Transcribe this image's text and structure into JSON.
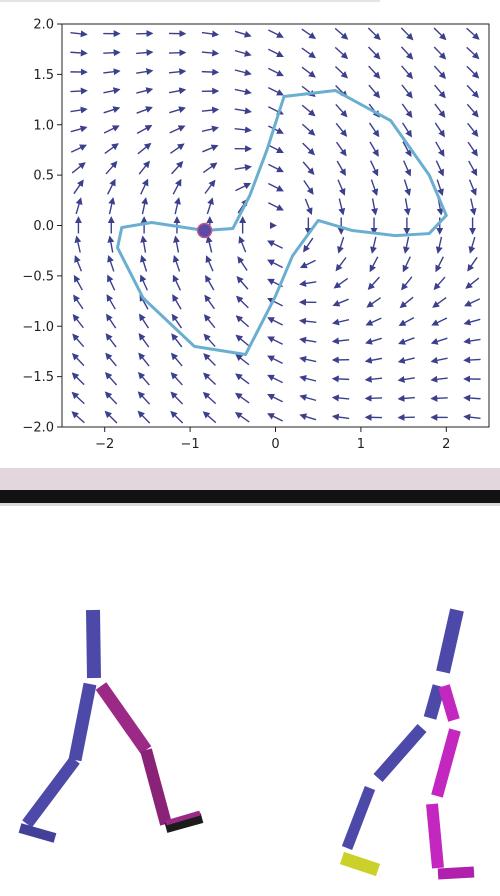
{
  "chart_data": {
    "type": "quiver",
    "xlim": [
      -2.5,
      2.5
    ],
    "ylim": [
      -2.0,
      2.0
    ],
    "xticks": [
      "-2",
      "-1",
      "0",
      "1",
      "2"
    ],
    "yticks": [
      "2.0",
      "1.5",
      "1.0",
      "0.5",
      "0.0",
      "-0.5",
      "-1.0",
      "-1.5",
      "-2.0"
    ],
    "vector_field": {
      "x_range": [
        -2.5,
        2.5
      ],
      "y_range": [
        -2.0,
        2.0
      ],
      "nx": 13,
      "ny": 21
    },
    "trajectory": [
      [
        -0.83,
        -0.05
      ],
      [
        -0.5,
        -0.03
      ],
      [
        -0.3,
        0.3
      ],
      [
        -0.1,
        0.75
      ],
      [
        0.1,
        1.28
      ],
      [
        0.7,
        1.34
      ],
      [
        1.35,
        1.04
      ],
      [
        1.8,
        0.5
      ],
      [
        2.0,
        0.1
      ],
      [
        1.8,
        -0.08
      ],
      [
        1.4,
        -0.1
      ],
      [
        0.9,
        -0.05
      ],
      [
        0.5,
        0.05
      ],
      [
        0.2,
        -0.3
      ],
      [
        0.0,
        -0.7
      ],
      [
        -0.35,
        -1.28
      ],
      [
        -0.95,
        -1.2
      ],
      [
        -1.55,
        -0.72
      ],
      [
        -1.85,
        -0.22
      ],
      [
        -1.8,
        -0.02
      ],
      [
        -1.45,
        0.03
      ],
      [
        -0.83,
        -0.05
      ]
    ],
    "marker": {
      "x": -0.83,
      "y": -0.05
    },
    "colors": {
      "arrow": "#3c3f8c",
      "trajectory": "#6aaed0",
      "marker": "#5b4aa8",
      "axis": "#222222"
    }
  },
  "simulation": {
    "colors": {
      "blue_limb": "#4c49a8",
      "magenta_limb": "#9a2a86",
      "bright_magenta": "#c426c0",
      "yellow_foot": "#c9d12a",
      "dark_foot": "#1c1c1c"
    }
  }
}
